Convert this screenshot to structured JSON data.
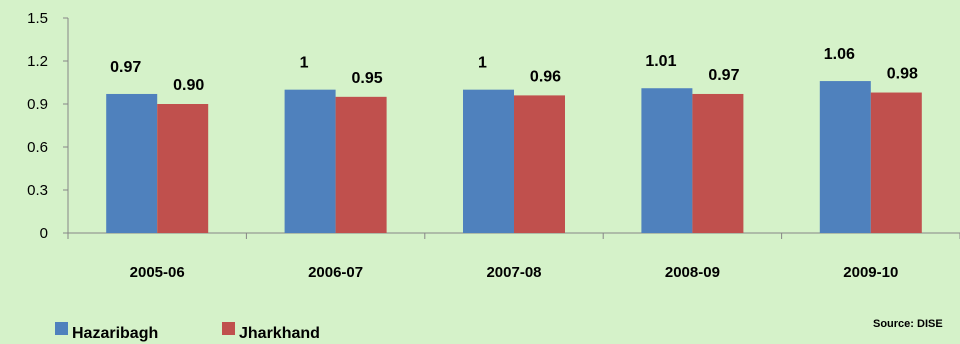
{
  "chart_data": {
    "type": "bar",
    "categories": [
      "2005-06",
      "2006-07",
      "2007-08",
      "2008-09",
      "2009-10"
    ],
    "series": [
      {
        "name": "Hazaribagh",
        "values": [
          0.97,
          1,
          1,
          1.01,
          1.06
        ],
        "labels": [
          "0.97",
          "1",
          "1",
          "1.01",
          "1.06"
        ],
        "color": "#4f81bd"
      },
      {
        "name": "Jharkhand",
        "values": [
          0.9,
          0.95,
          0.96,
          0.97,
          0.98
        ],
        "labels": [
          "0.90",
          "0.95",
          "0.96",
          "0.97",
          "0.98"
        ],
        "color": "#c0504d"
      }
    ],
    "ylim": [
      0,
      1.5
    ],
    "yticks": [
      "0",
      "0.3",
      "0.6",
      "0.9",
      "1.2",
      "1.5"
    ],
    "grid": false,
    "legend": "bottom-left",
    "source": "Source: DISE"
  }
}
